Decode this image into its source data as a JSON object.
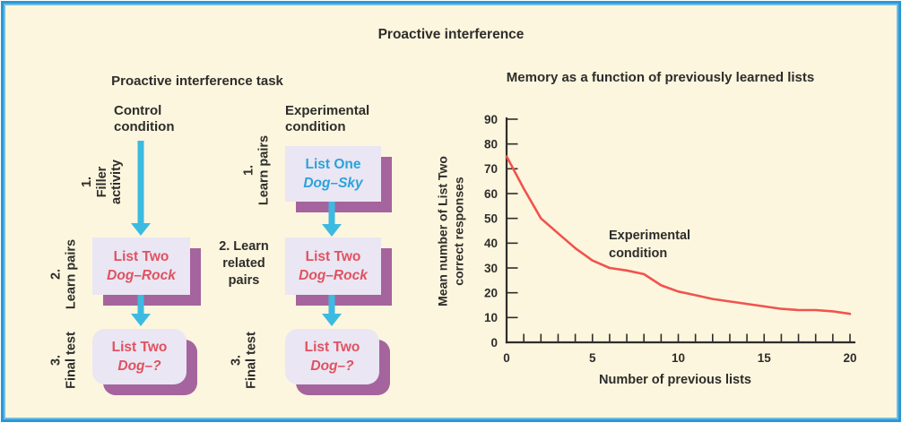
{
  "palette": {
    "background": "#FCF6DE",
    "frame_blue": "#2B99D5",
    "frame_blue_light": "#6FBCE6",
    "box_fill": "#EAE6F3",
    "box_shadow_purple": "#A5649D",
    "arrow_cyan": "#3DBAE1",
    "list_one_blue": "#2BA3DB",
    "list_two_red": "#E05260",
    "text_dark": "#2E2D2B"
  },
  "title": "Proactive interference",
  "task": {
    "title": "Proactive interference task",
    "control": {
      "header": "Control\ncondition",
      "step1": "1.\nFiller\nactivity",
      "step2": "2.\nLearn pairs",
      "step3": "3.\nFinal test",
      "learn_box": {
        "title": "List Two",
        "pair": "Dog–Rock"
      },
      "test_box": {
        "title": "List Two",
        "pair": "Dog–?"
      }
    },
    "experimental": {
      "header": "Experimental\ncondition",
      "step1": "1.\nLearn pairs",
      "step2": "2. Learn\nrelated\npairs",
      "step3": "3.\nFinal test",
      "list_one_box": {
        "title": "List One",
        "pair": "Dog–Sky"
      },
      "learn_box": {
        "title": "List Two",
        "pair": "Dog–Rock"
      },
      "test_box": {
        "title": "List Two",
        "pair": "Dog–?"
      }
    }
  },
  "chart_data": {
    "type": "line",
    "title": "Memory as a function of previously learned lists",
    "xlabel": "Number of previous lists",
    "ylabel": "Mean number of List Two\ncorrect responses",
    "annotation": "Experimental\ncondition",
    "series": [
      {
        "name": "Experimental condition",
        "x": [
          0,
          1,
          2,
          3,
          4,
          5,
          6,
          7,
          8,
          9,
          10,
          11,
          12,
          13,
          14,
          15,
          16,
          17,
          18,
          19,
          20
        ],
        "values": [
          75,
          62,
          50,
          44,
          38,
          33,
          30,
          29,
          27.5,
          23,
          20.5,
          19,
          17.5,
          16.5,
          15.5,
          14.5,
          13.5,
          13,
          13,
          12.5,
          11.5
        ]
      }
    ],
    "xlim": [
      0,
      20
    ],
    "ylim": [
      0,
      90
    ],
    "yticks": [
      0,
      10,
      20,
      30,
      40,
      50,
      60,
      70,
      80,
      90
    ],
    "xticks_minor_step": 1,
    "xtick_labels": [
      0,
      5,
      10,
      15,
      20
    ],
    "grid": false,
    "legend_position": "none",
    "line_color": "#F0534E"
  }
}
